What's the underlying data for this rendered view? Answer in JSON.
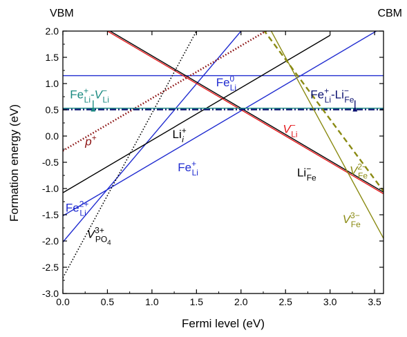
{
  "chart_data": {
    "type": "line",
    "xlabel": "Fermi level (eV)",
    "ylabel": "Formation energy (eV)",
    "xlim": [
      0.0,
      3.6
    ],
    "ylim": [
      -3.0,
      2.0
    ],
    "x_ticks": [
      "0.0",
      "0.5",
      "1.0",
      "1.5",
      "2.0",
      "2.5",
      "3.0",
      "3.5"
    ],
    "y_ticks": [
      "2.0",
      "1.5",
      "1.0",
      "0.5",
      "0.0",
      "-0.5",
      "-1.0",
      "-1.5",
      "-2.0",
      "-2.5",
      "-3.0"
    ],
    "x_tick_values": [
      0.0,
      0.5,
      1.0,
      1.5,
      2.0,
      2.5,
      3.0,
      3.5
    ],
    "y_tick_values": [
      2.0,
      1.5,
      1.0,
      0.5,
      0.0,
      -0.5,
      -1.0,
      -1.5,
      -2.0,
      -2.5,
      -3.0
    ],
    "band_edge_labels": {
      "left": "VBM",
      "right": "CBM"
    },
    "grid": false,
    "colors": {
      "black": "#000000",
      "red": "#e4191c",
      "blue": "#1f2bd0",
      "navy": "#0a1070",
      "teal": "#1a8a80",
      "darkred": "#8b1111",
      "olive": "#8a8a12"
    },
    "series": [
      {
        "key": "fe_li_2plus",
        "color": "blue",
        "style": "solid",
        "x": [
          0.0,
          0.4
        ],
        "y": [
          -1.52,
          -1.12
        ]
      },
      {
        "key": "fe_li_plus",
        "color": "blue",
        "style": "solid",
        "x": [
          0.4,
          3.6
        ],
        "y": [
          -1.12,
          2.08
        ]
      },
      {
        "key": "fe_li_0",
        "color": "blue",
        "style": "solid",
        "x": [
          0.0,
          3.6
        ],
        "y": [
          1.15,
          1.15
        ]
      },
      {
        "key": "fe_li_to_2plus",
        "color": "blue",
        "style": "solid",
        "x": [
          0.0,
          2.0
        ],
        "y": [
          -2.02,
          2.0
        ]
      },
      {
        "key": "li_i_plus",
        "color": "black",
        "style": "solid",
        "x": [
          0.0,
          3.0
        ],
        "y": [
          -1.08,
          1.92
        ]
      },
      {
        "key": "li_fe_minus",
        "color": "black",
        "style": "solid",
        "x": [
          0.0,
          3.6
        ],
        "y": [
          2.53,
          -1.07
        ]
      },
      {
        "key": "v_li_minus",
        "color": "red",
        "style": "solid",
        "x": [
          0.45,
          3.6
        ],
        "y": [
          2.05,
          -1.1
        ]
      },
      {
        "key": "v_po4_3plus",
        "color": "black",
        "style": "dotted",
        "x": [
          0.0,
          1.5
        ],
        "y": [
          -2.7,
          2.0
        ]
      },
      {
        "key": "p_plus",
        "color": "darkred",
        "style": "dotted",
        "x": [
          0.0,
          2.3
        ],
        "y": [
          -0.28,
          2.02
        ]
      },
      {
        "key": "fe_li_v_li_complex",
        "color": "teal",
        "style": "solid",
        "x": [
          0.0,
          3.6
        ],
        "y": [
          0.53,
          0.53
        ]
      },
      {
        "key": "fe_li_li_fe_complex",
        "color": "navy",
        "style": "dashdot",
        "x": [
          0.0,
          3.6
        ],
        "y": [
          0.505,
          0.505
        ]
      },
      {
        "key": "v_fe_2minus",
        "color": "olive",
        "style": "dashed",
        "x": [
          2.25,
          3.6
        ],
        "y": [
          2.03,
          -1.05
        ]
      },
      {
        "key": "v_fe_3minus",
        "color": "olive",
        "style": "solid",
        "x": [
          2.33,
          3.6
        ],
        "y": [
          2.03,
          -1.95
        ]
      }
    ],
    "labels": [
      {
        "key": "fe_li_0",
        "base": "Fe",
        "sup": "0",
        "sub": "Li",
        "color": "blue",
        "x": 1.72,
        "y": 0.95
      },
      {
        "key": "fe_li_plus",
        "base": "Fe",
        "sup": "+",
        "sub": "Li",
        "color": "blue",
        "x": 1.29,
        "y": -0.67
      },
      {
        "key": "fe_li_2plus",
        "base": "Fe",
        "sup": "2+",
        "sub": "Li",
        "color": "blue",
        "x": 0.03,
        "y": -1.44
      },
      {
        "key": "li_i_plus",
        "base": "Li",
        "sup": "+",
        "sub": "i",
        "sub_italic": true,
        "color": "black",
        "x": 1.23,
        "y": -0.04
      },
      {
        "key": "li_fe_minus",
        "base": "Li",
        "sup": "−",
        "sub": "Fe",
        "color": "black",
        "x": 2.63,
        "y": -0.77
      },
      {
        "key": "v_li_minus",
        "base": "V",
        "sup": "−",
        "sub": "Li",
        "italic": true,
        "color": "red",
        "x": 2.47,
        "y": 0.06
      },
      {
        "key": "v_po4_3plus",
        "base": "V",
        "sup": "3+",
        "sub": "PO",
        "subsub": "4",
        "italic": true,
        "color": "black",
        "x": 0.27,
        "y": -1.94
      },
      {
        "key": "p_plus",
        "base": "p",
        "sup": "+",
        "italic": true,
        "color": "darkred",
        "x": 0.25,
        "y": -0.18
      },
      {
        "key": "v_fe_2minus",
        "base": "V",
        "sup": "2−",
        "sub": "Fe",
        "italic": true,
        "color": "olive",
        "x": 3.22,
        "y": -0.73
      },
      {
        "key": "v_fe_3minus",
        "base": "V",
        "sup": "3−",
        "sub": "Fe",
        "italic": true,
        "color": "olive",
        "x": 3.14,
        "y": -1.66
      }
    ],
    "complex_labels": [
      {
        "key": "fe_li_v_li",
        "color": "teal",
        "x": 0.08,
        "y": 0.72,
        "arrow_x": 0.34,
        "parts": [
          {
            "base": "Fe",
            "sup": "+",
            "sub": "Li"
          },
          {
            "sep": "-"
          },
          {
            "base": "V",
            "sup": "−",
            "sub": "Li",
            "italic": true
          }
        ]
      },
      {
        "key": "fe_li_li_fe",
        "color": "navy",
        "x": 2.78,
        "y": 0.72,
        "arrow_x": 3.28,
        "parts": [
          {
            "base": "Fe",
            "sup": "+",
            "sub": "Li"
          },
          {
            "sep": "-"
          },
          {
            "base": "Li",
            "sup": "−",
            "sub": "Fe"
          }
        ]
      }
    ]
  }
}
